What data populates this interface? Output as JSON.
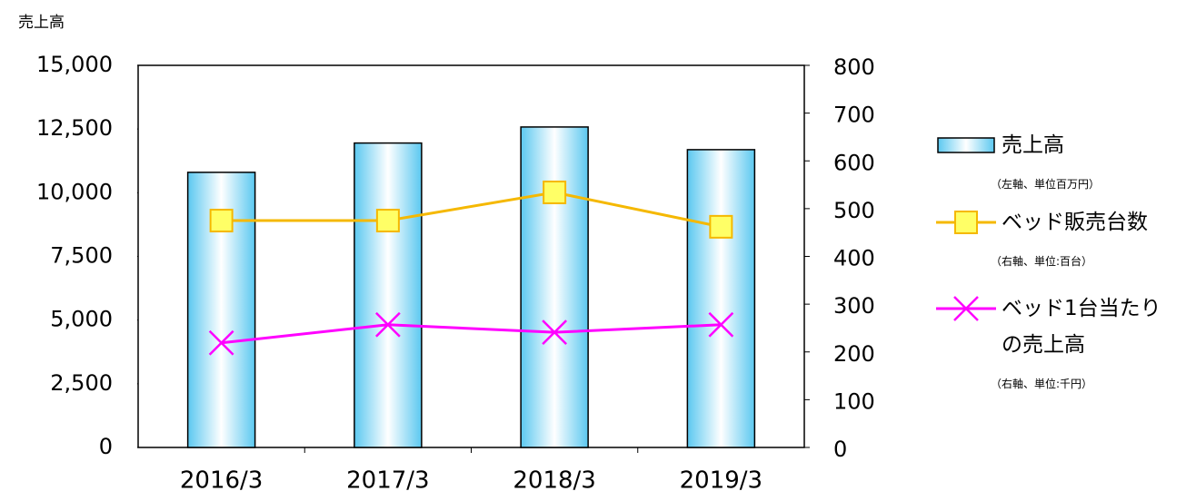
{
  "chart_data": {
    "type": "bar_line",
    "y_axis_title": "売上高",
    "categories": [
      "2016/3",
      "2017/3",
      "2018/3",
      "2019/3"
    ],
    "series": [
      {
        "name": "売上高",
        "legend_note": "（左軸、単位百万円）",
        "type": "bar",
        "color": "#5bc8f0",
        "axis": "y",
        "values": [
          10800,
          11950,
          12580,
          11690
        ]
      },
      {
        "name": "ベッド販売台数",
        "legend_note": "（右軸、単位:百台）",
        "type": "line",
        "marker": "square",
        "color": "#f5b800",
        "axis": "y2",
        "values": [
          475,
          475,
          534,
          462
        ]
      },
      {
        "name": "ベッド1台当たり\nの売上高",
        "legend_note": "（右軸、単位:千円）",
        "type": "line",
        "marker": "x",
        "color": "#ff00ff",
        "axis": "y2",
        "values": [
          219,
          257,
          241,
          257
        ]
      }
    ],
    "ylim": [
      0,
      15000
    ],
    "yticks": [
      0,
      {
        "value": 2500,
        "label": "2,500"
      },
      {
        "value": 5000,
        "label": "5,000"
      },
      {
        "value": 7500,
        "label": "7,500"
      },
      {
        "value": 10000,
        "label": "10,000"
      },
      {
        "value": 12500,
        "label": "12,500"
      },
      {
        "value": 15000,
        "label": "15,000"
      }
    ],
    "y2lim": [
      0,
      800
    ],
    "y2ticks": [
      0,
      100,
      200,
      300,
      400,
      500,
      600,
      700,
      800
    ],
    "legend": "right"
  }
}
